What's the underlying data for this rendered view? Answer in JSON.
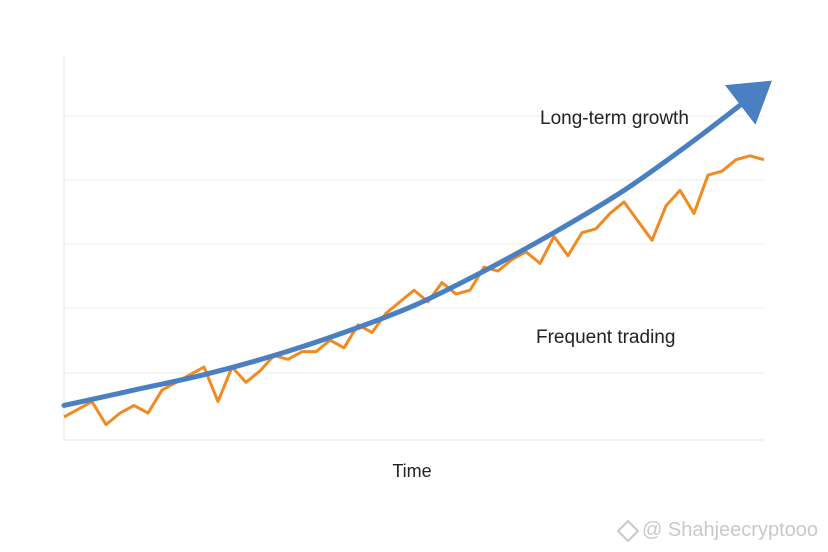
{
  "chart_data": {
    "type": "line",
    "xlabel": "Time",
    "ylabel": "",
    "xlim": [
      0,
      100
    ],
    "ylim": [
      0,
      100
    ],
    "grid": true,
    "annotations": [
      "Long-term growth",
      "Frequent trading"
    ],
    "series": [
      {
        "name": "Long-term growth",
        "color": "#4a7fc1",
        "x": [
          0,
          10,
          20,
          30,
          40,
          50,
          60,
          70,
          80,
          90,
          100
        ],
        "y": [
          9,
          13,
          17,
          22,
          28,
          35,
          44,
          54,
          65,
          78,
          92
        ]
      },
      {
        "name": "Frequent trading",
        "color": "#f08a21",
        "x": [
          0,
          2,
          4,
          6,
          8,
          10,
          12,
          14,
          16,
          18,
          20,
          22,
          24,
          26,
          28,
          30,
          32,
          34,
          36,
          38,
          40,
          42,
          44,
          46,
          48,
          50,
          52,
          54,
          56,
          58,
          60,
          62,
          64,
          66,
          68,
          70,
          72,
          74,
          76,
          78,
          80,
          82,
          84,
          86,
          88,
          90,
          92,
          94,
          96,
          98,
          100
        ],
        "y": [
          6,
          8,
          10,
          4,
          7,
          9,
          7,
          13,
          15,
          17,
          19,
          10,
          19,
          15,
          18,
          22,
          21,
          23,
          23,
          26,
          24,
          30,
          28,
          33,
          36,
          39,
          36,
          41,
          38,
          39,
          45,
          44,
          47,
          49,
          46,
          53,
          48,
          54,
          55,
          59,
          62,
          57,
          52,
          61,
          65,
          59,
          69,
          70,
          73,
          74,
          73
        ]
      }
    ]
  },
  "watermark": "@ Shahjeecryptooo"
}
